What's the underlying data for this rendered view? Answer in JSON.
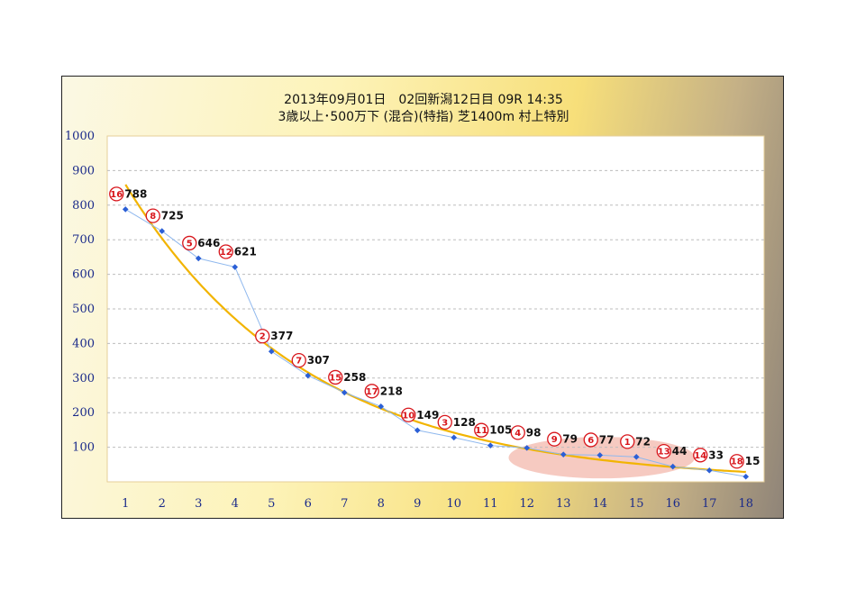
{
  "chart_data": {
    "type": "line",
    "title": "2013年09月01日　02回新潟12日目 09R 14:35",
    "subtitle": "3歳以上･500万下 (混合)(特指) 芝1400m 村上特別",
    "x": [
      1,
      2,
      3,
      4,
      5,
      6,
      7,
      8,
      9,
      10,
      11,
      12,
      13,
      14,
      15,
      16,
      17,
      18
    ],
    "values": [
      788,
      725,
      646,
      621,
      377,
      307,
      258,
      218,
      149,
      128,
      105,
      98,
      79,
      77,
      72,
      44,
      33,
      15
    ],
    "horse_numbers": [
      "16",
      "8",
      "5",
      "12",
      "2",
      "7",
      "15",
      "17",
      "10",
      "3",
      "11",
      "4",
      "9",
      "6",
      "1",
      "13",
      "14",
      "18"
    ],
    "value_labels": [
      "788",
      "725",
      "646",
      "621",
      "377",
      "307",
      "258",
      "218",
      "149",
      "128",
      "105",
      "98",
      "79",
      "77",
      "72",
      "44",
      "33",
      "15"
    ],
    "xticks": [
      "1",
      "2",
      "3",
      "4",
      "5",
      "6",
      "7",
      "8",
      "9",
      "10",
      "11",
      "12",
      "13",
      "14",
      "15",
      "16",
      "17",
      "18"
    ],
    "yticks": [
      "100",
      "200",
      "300",
      "400",
      "500",
      "600",
      "700",
      "800",
      "900",
      "1000"
    ],
    "ylim": [
      0,
      1000
    ],
    "xlim": [
      0.5,
      18.5
    ],
    "grid": true,
    "trendline": {
      "type": "exponential",
      "a": 1050,
      "b": 0.2
    },
    "highlight_region": {
      "x_from": 11.5,
      "x_to": 16.6,
      "y_center": 70,
      "y_span": 120
    },
    "colors": {
      "series": "#8fb8ee",
      "marker": "#2b5fd6",
      "trend": "#f2b400",
      "circled": "#d8151b",
      "highlight": "#f2b3a6"
    }
  }
}
